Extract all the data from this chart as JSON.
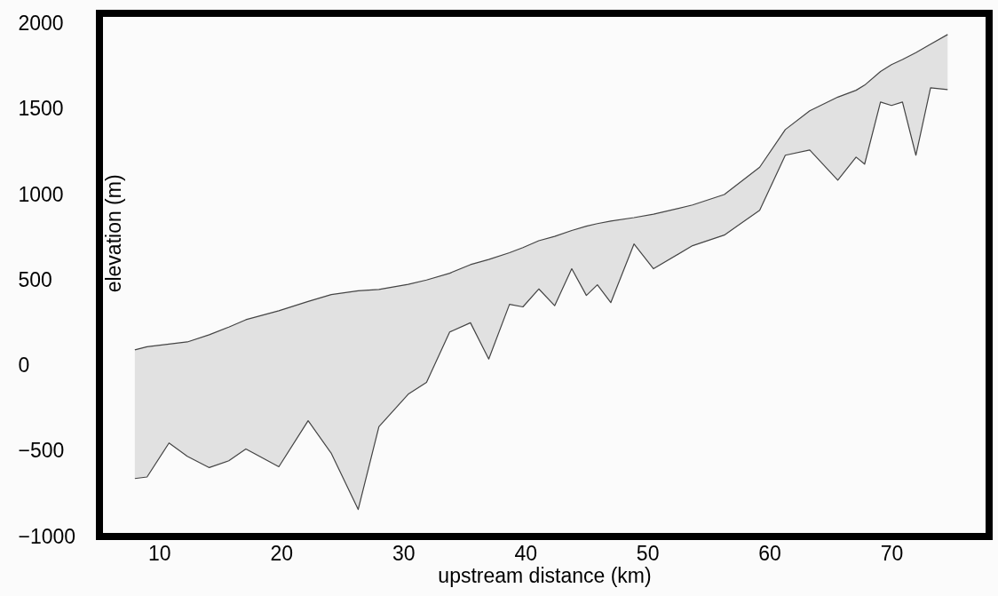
{
  "chart_data": {
    "type": "line",
    "xlabel": "upstream distance (km)",
    "ylabel": "elevation (m)",
    "x": [
      8.0,
      9.0,
      10.8,
      12.3,
      14.1,
      15.7,
      17.1,
      19.8,
      22.2,
      24.1,
      26.3,
      28.0,
      30.4,
      31.9,
      33.8,
      35.5,
      37.0,
      38.7,
      39.8,
      41.1,
      42.4,
      43.8,
      45.0,
      45.9,
      47.0,
      48.9,
      50.5,
      53.7,
      56.3,
      59.2,
      61.3,
      63.3,
      65.6,
      67.1,
      67.8,
      69.1,
      70.0,
      70.9,
      72.0,
      73.2,
      74.6
    ],
    "series": [
      {
        "color": "#444444",
        "values": [
          92,
          110,
          125,
          138,
          180,
          225,
          268,
          320,
          375,
          415,
          437,
          445,
          475,
          500,
          540,
          590,
          620,
          660,
          690,
          730,
          755,
          790,
          815,
          830,
          845,
          865,
          885,
          939,
          1000,
          1160,
          1380,
          1490,
          1570,
          1610,
          1640,
          1720,
          1760,
          1790,
          1830,
          1880,
          1936
        ],
        "lower": [
          -661,
          -652,
          -453,
          -531,
          -597,
          -557,
          -488,
          -592,
          -323,
          -514,
          -842,
          -358,
          -168,
          -99,
          196,
          250,
          38,
          358,
          343,
          448,
          350,
          566,
          410,
          472,
          368,
          711,
          566,
          701,
          763,
          908,
          1230,
          1261,
          1084,
          1219,
          1178,
          1541,
          1521,
          1541,
          1230,
          1624,
          1614
        ],
        "upper": [
          92,
          110,
          125,
          138,
          180,
          225,
          268,
          320,
          375,
          415,
          437,
          445,
          475,
          500,
          540,
          590,
          620,
          660,
          690,
          730,
          755,
          790,
          815,
          830,
          845,
          865,
          885,
          939,
          1000,
          1160,
          1380,
          1490,
          1570,
          1610,
          1640,
          1720,
          1760,
          1790,
          1830,
          1880,
          1936
        ]
      },
      {
        "color": "#444444",
        "values": [
          -661,
          -652,
          -453,
          -531,
          -597,
          -557,
          -488,
          -592,
          -323,
          -514,
          -842,
          -358,
          -168,
          -99,
          196,
          250,
          38,
          358,
          343,
          448,
          350,
          566,
          410,
          472,
          368,
          711,
          566,
          701,
          763,
          908,
          1230,
          1261,
          1084,
          1219,
          1178,
          1541,
          1521,
          1541,
          1230,
          1624,
          1614
        ]
      }
    ],
    "xlim": [
      5.1,
      78
    ],
    "xticks": [
      10,
      20,
      30,
      40,
      50,
      60,
      70
    ],
    "ylim": [
      -1000,
      2060
    ],
    "yticks": [
      -1000,
      -500,
      0,
      500,
      1000,
      1500,
      2000
    ],
    "grid": false
  }
}
